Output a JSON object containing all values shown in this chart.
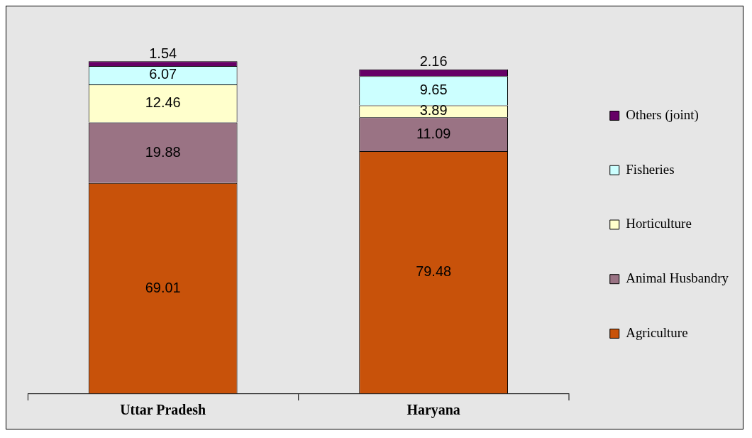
{
  "chart_data": {
    "type": "bar",
    "stacked": true,
    "categories": [
      "Uttar Pradesh",
      "Haryana"
    ],
    "series": [
      {
        "name": "Agriculture",
        "color": "#c8520a",
        "values": [
          69.01,
          79.48
        ]
      },
      {
        "name": "Animal Husbandry",
        "color": "#9a7384",
        "values": [
          19.88,
          11.09
        ]
      },
      {
        "name": "Horticulture",
        "color": "#ffffcc",
        "values": [
          12.46,
          3.89
        ]
      },
      {
        "name": "Fisheries",
        "color": "#ccffff",
        "values": [
          6.07,
          9.65
        ]
      },
      {
        "name": "Others (joint)",
        "color": "#660066",
        "values": [
          1.54,
          2.16
        ]
      }
    ],
    "data_labels": true,
    "legend": "right",
    "grid": false
  }
}
